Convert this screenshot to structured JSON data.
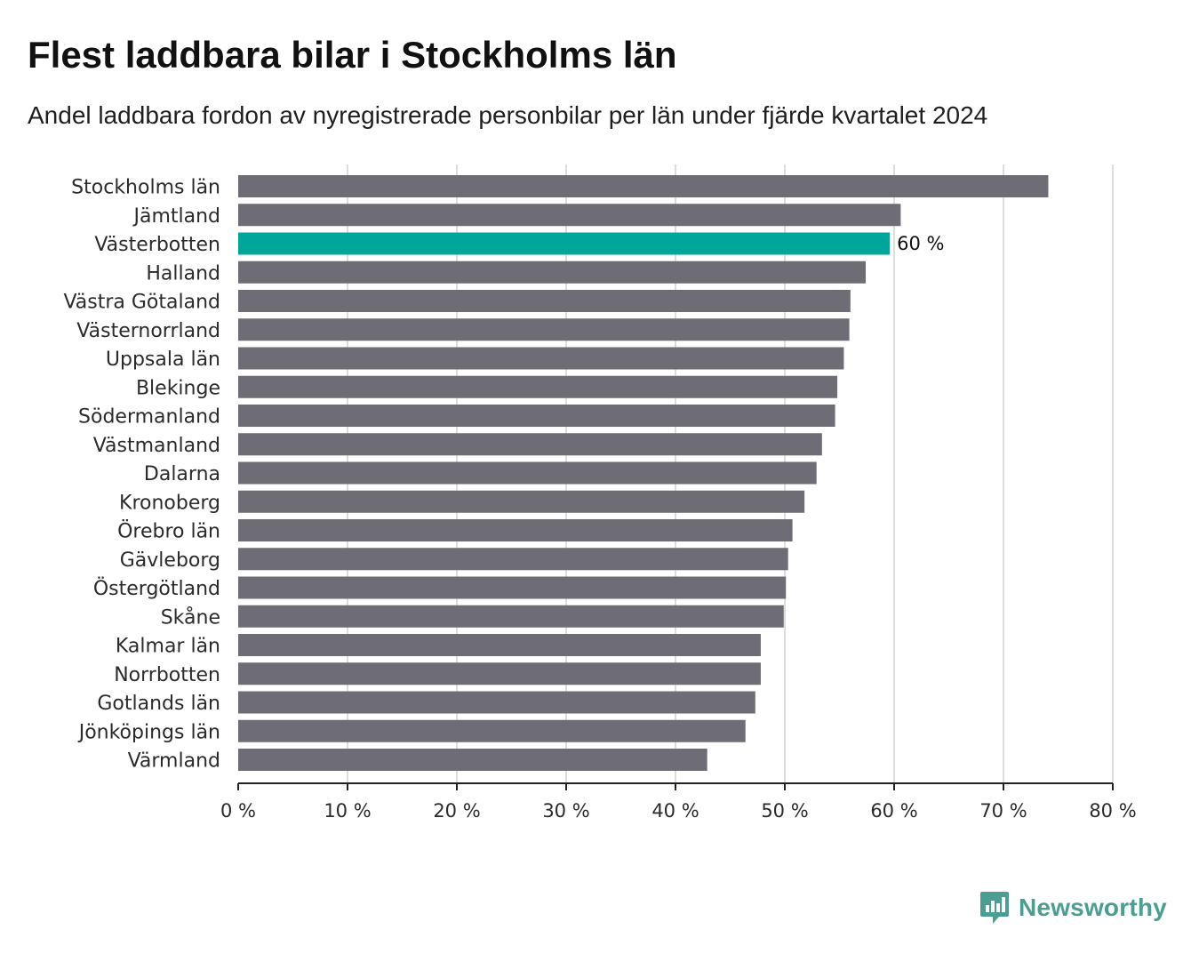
{
  "header": {
    "title": "Flest laddbara bilar i Stockholms län",
    "subtitle": "Andel laddbara fordon av nyregistrerade personbilar per län under fjärde kvartalet 2024"
  },
  "brand": {
    "name": "Newsworthy",
    "icon": "newsworthy-logo-icon",
    "color": "#4a9e92"
  },
  "chart_data": {
    "type": "bar",
    "orientation": "horizontal",
    "title": "Flest laddbara bilar i Stockholms län",
    "subtitle": "Andel laddbara fordon av nyregistrerade personbilar per län under fjärde kvartalet 2024",
    "categories": [
      "Stockholms län",
      "Jämtland",
      "Västerbotten",
      "Halland",
      "Västra Götaland",
      "Västernorrland",
      "Uppsala län",
      "Blekinge",
      "Södermanland",
      "Västmanland",
      "Dalarna",
      "Kronoberg",
      "Örebro län",
      "Gävleborg",
      "Östergötland",
      "Skåne",
      "Kalmar län",
      "Norrbotten",
      "Gotlands län",
      "Jönköpings län",
      "Värmland"
    ],
    "values": [
      74.1,
      60.6,
      59.6,
      57.4,
      56.0,
      55.9,
      55.4,
      54.8,
      54.6,
      53.4,
      52.9,
      51.8,
      50.7,
      50.3,
      50.1,
      49.9,
      47.8,
      47.8,
      47.3,
      46.4,
      42.9
    ],
    "highlight": {
      "category": "Västerbotten",
      "label": "60 %"
    },
    "xlim": [
      0,
      80
    ],
    "x_ticks": [
      0,
      10,
      20,
      30,
      40,
      50,
      60,
      70,
      80
    ],
    "x_tick_labels": [
      "0 %",
      "10 %",
      "20 %",
      "30 %",
      "40 %",
      "50 %",
      "60 %",
      "70 %",
      "80 %"
    ],
    "xlabel": "",
    "ylabel": "",
    "grid": "vertical",
    "legend": "none",
    "colors": {
      "bar": "#6e6c74",
      "highlight": "#00a699",
      "grid": "#dddddd",
      "axis": "#222222"
    }
  }
}
